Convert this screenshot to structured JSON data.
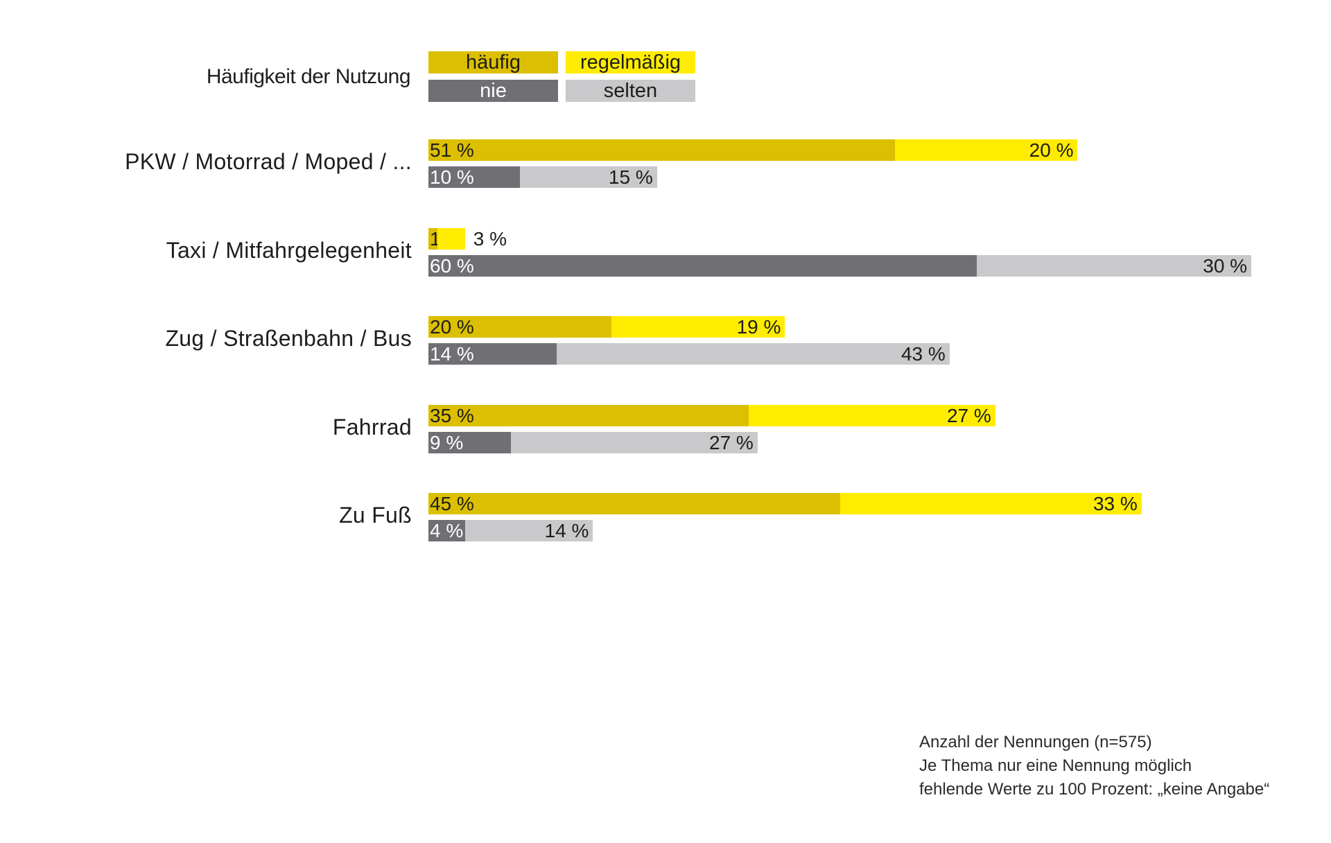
{
  "chart_data": {
    "type": "bar",
    "orientation": "horizontal",
    "stacked": true,
    "title": "",
    "legend_title": "Häufigkeit der Nutzung",
    "legend_placement": "top",
    "legend": [
      {
        "key": "haeufig",
        "label": "häufig",
        "color": "#dcbf00",
        "text_color": "#1d1d1b"
      },
      {
        "key": "regelmaessig",
        "label": "regelmäßig",
        "color": "#ffec00",
        "text_color": "#1d1d1b"
      },
      {
        "key": "nie",
        "label": "nie",
        "color": "#706f74",
        "text_color": "#ffffff"
      },
      {
        "key": "selten",
        "label": "selten",
        "color": "#c9c8cb",
        "text_color": "#1d1d1b"
      }
    ],
    "categories": [
      "PKW / Motorrad / Moped / ...",
      "Taxi / Mitfahrgelegenheit",
      "Zug / Straßenbahn / Bus",
      "Fahrrad",
      "Zu Fuß"
    ],
    "series": [
      {
        "name": "häufig",
        "stack": "upper",
        "values": [
          51,
          1,
          20,
          35,
          45
        ]
      },
      {
        "name": "regelmäßig",
        "stack": "upper",
        "values": [
          20,
          3,
          19,
          27,
          33
        ]
      },
      {
        "name": "nie",
        "stack": "lower",
        "values": [
          10,
          60,
          14,
          9,
          4
        ]
      },
      {
        "name": "selten",
        "stack": "lower",
        "values": [
          15,
          30,
          43,
          27,
          14
        ]
      }
    ],
    "unit": "%",
    "xlabel": "",
    "ylabel": "",
    "xlim": [
      0,
      100
    ],
    "grid": false
  },
  "footnote": [
    "Anzahl der Nennungen (n=575)",
    "Je Thema nur eine Nennung möglich",
    "fehlende Werte zu 100 Prozent: „keine Angabe“"
  ]
}
